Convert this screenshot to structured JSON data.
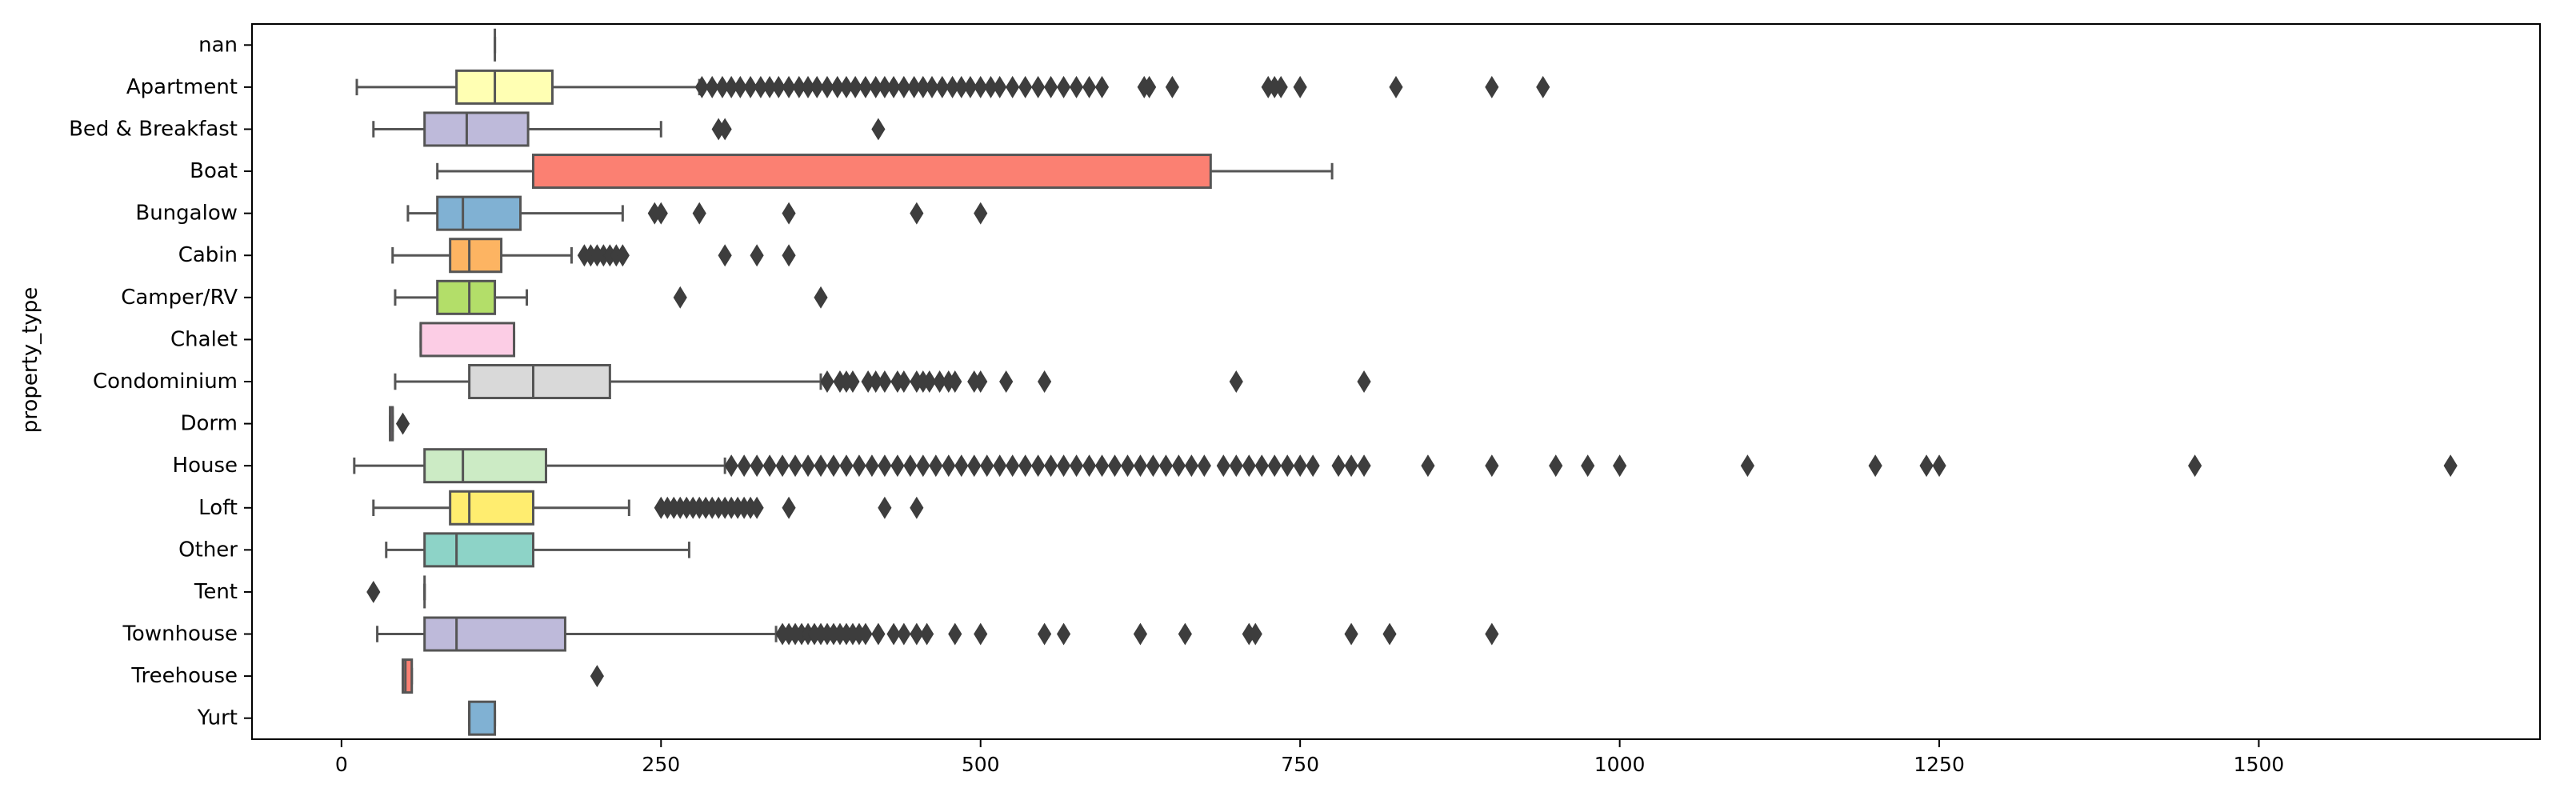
{
  "chart_data": {
    "type": "boxplot",
    "orientation": "horizontal",
    "xlabel": "",
    "ylabel": "property_type",
    "xlim": [
      -70,
      1720
    ],
    "xticks": [
      0,
      250,
      500,
      750,
      1000,
      1250,
      1500
    ],
    "grid": false,
    "legend": "none",
    "categories": [
      "nan",
      "Apartment",
      "Bed & Breakfast",
      "Boat",
      "Bungalow",
      "Cabin",
      "Camper/RV",
      "Chalet",
      "Condominium",
      "Dorm",
      "House",
      "Loft",
      "Other",
      "Tent",
      "Townhouse",
      "Treehouse",
      "Yurt"
    ],
    "boxes": [
      {
        "category": "nan",
        "whislo": 120,
        "q1": 120,
        "med": 120,
        "q3": 120,
        "whishi": 120,
        "color": "#66c2a5",
        "fliers": []
      },
      {
        "category": "Apartment",
        "whislo": 12,
        "q1": 90,
        "med": 120,
        "q3": 165,
        "whishi": 280,
        "color": "#ffffb3",
        "fliers": [
          282,
          290,
          298,
          305,
          312,
          320,
          328,
          335,
          342,
          350,
          358,
          365,
          372,
          380,
          388,
          395,
          402,
          410,
          418,
          425,
          432,
          440,
          448,
          455,
          462,
          470,
          478,
          485,
          492,
          500,
          508,
          515,
          525,
          535,
          545,
          555,
          565,
          575,
          585,
          595,
          628,
          632,
          650,
          725,
          730,
          735,
          750,
          825,
          900,
          940
        ]
      },
      {
        "category": "Bed & Breakfast",
        "whislo": 25,
        "q1": 65,
        "med": 98,
        "q3": 146,
        "whishi": 250,
        "color": "#bebada",
        "fliers": [
          295,
          300,
          420
        ]
      },
      {
        "category": "Boat",
        "whislo": 75,
        "q1": 150,
        "med": 150,
        "q3": 680,
        "whishi": 775,
        "color": "#fb8072",
        "fliers": []
      },
      {
        "category": "Bungalow",
        "whislo": 52,
        "q1": 75,
        "med": 95,
        "q3": 140,
        "whishi": 220,
        "color": "#80b1d3",
        "fliers": [
          245,
          250,
          280,
          350,
          450,
          500
        ]
      },
      {
        "category": "Cabin",
        "whislo": 40,
        "q1": 85,
        "med": 100,
        "q3": 125,
        "whishi": 180,
        "color": "#fdb462",
        "fliers": [
          190,
          195,
          200,
          205,
          210,
          215,
          220,
          300,
          325,
          350
        ]
      },
      {
        "category": "Camper/RV",
        "whislo": 42,
        "q1": 75,
        "med": 100,
        "q3": 120,
        "whishi": 145,
        "color": "#b3de69",
        "fliers": [
          265,
          375
        ]
      },
      {
        "category": "Chalet",
        "whislo": 62,
        "q1": 62,
        "med": 62,
        "q3": 135,
        "whishi": 135,
        "color": "#fccde5",
        "fliers": []
      },
      {
        "category": "Condominium",
        "whislo": 42,
        "q1": 100,
        "med": 150,
        "q3": 210,
        "whishi": 375,
        "color": "#d9d9d9",
        "fliers": [
          380,
          390,
          395,
          400,
          412,
          418,
          425,
          435,
          440,
          450,
          455,
          460,
          468,
          475,
          480,
          495,
          500,
          520,
          550,
          700,
          800
        ]
      },
      {
        "category": "Dorm",
        "whislo": 38,
        "q1": 38,
        "med": 40,
        "q3": 40,
        "whishi": 40,
        "color": "#bc80bd",
        "fliers": [
          48
        ]
      },
      {
        "category": "House",
        "whislo": 10,
        "q1": 65,
        "med": 95,
        "q3": 160,
        "whishi": 300,
        "color": "#ccebc5",
        "fliers": [
          305,
          315,
          325,
          335,
          345,
          355,
          365,
          375,
          385,
          395,
          405,
          415,
          425,
          435,
          445,
          455,
          465,
          475,
          485,
          495,
          505,
          515,
          525,
          535,
          545,
          555,
          565,
          575,
          585,
          595,
          605,
          615,
          625,
          635,
          645,
          655,
          665,
          675,
          690,
          700,
          710,
          720,
          730,
          740,
          750,
          760,
          780,
          790,
          800,
          850,
          900,
          950,
          975,
          1000,
          1100,
          1200,
          1240,
          1250,
          1450,
          1650
        ]
      },
      {
        "category": "Loft",
        "whislo": 25,
        "q1": 85,
        "med": 100,
        "q3": 150,
        "whishi": 225,
        "color": "#ffed6f",
        "fliers": [
          250,
          255,
          260,
          265,
          270,
          275,
          280,
          285,
          290,
          295,
          300,
          305,
          310,
          315,
          320,
          325,
          350,
          425,
          450
        ]
      },
      {
        "category": "Other",
        "whislo": 35,
        "q1": 65,
        "med": 90,
        "q3": 150,
        "whishi": 272,
        "color": "#8dd3c7",
        "fliers": []
      },
      {
        "category": "Tent",
        "whislo": 65,
        "q1": 65,
        "med": 65,
        "q3": 65,
        "whishi": 65,
        "color": "#ffffb3",
        "fliers": [
          25
        ]
      },
      {
        "category": "Townhouse",
        "whislo": 28,
        "q1": 65,
        "med": 90,
        "q3": 175,
        "whishi": 340,
        "color": "#bebada",
        "fliers": [
          345,
          350,
          355,
          360,
          365,
          370,
          375,
          380,
          385,
          390,
          395,
          400,
          405,
          410,
          420,
          432,
          440,
          450,
          458,
          480,
          500,
          550,
          565,
          625,
          660,
          710,
          715,
          790,
          820,
          900
        ]
      },
      {
        "category": "Treehouse",
        "whislo": 48,
        "q1": 48,
        "med": 50,
        "q3": 55,
        "whishi": 55,
        "color": "#fb8072",
        "fliers": [
          200
        ]
      },
      {
        "category": "Yurt",
        "whislo": 100,
        "q1": 100,
        "med": 100,
        "q3": 120,
        "whishi": 120,
        "color": "#80b1d3",
        "fliers": []
      }
    ]
  }
}
